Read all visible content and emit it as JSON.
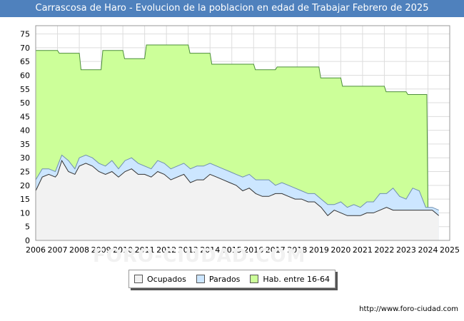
{
  "chart_data": {
    "type": "area",
    "title": "Carrascosa de Haro - Evolucion de la poblacion en edad de Trabajar Febrero de 2025",
    "xlabel": "",
    "ylabel": "",
    "x_ticks": [
      "2006",
      "2007",
      "2008",
      "2009",
      "2010",
      "2011",
      "2012",
      "2013",
      "2014",
      "2015",
      "2016",
      "2017",
      "2018",
      "2019",
      "2020",
      "2021",
      "2022",
      "2023",
      "2024",
      "2025"
    ],
    "y_ticks": [
      0,
      5,
      10,
      15,
      20,
      25,
      30,
      35,
      40,
      45,
      50,
      55,
      60,
      65,
      70,
      75
    ],
    "xlim": [
      2006,
      2025
    ],
    "ylim": [
      0,
      78
    ],
    "grid": true,
    "legend_position": "bottom",
    "series": [
      {
        "name": "Hab. entre 16-64",
        "color": "#ccff99",
        "x": [
          2006.0,
          2006.08,
          2007.0,
          2007.08,
          2008.0,
          2008.08,
          2009.0,
          2009.08,
          2010.0,
          2010.08,
          2011.0,
          2011.08,
          2012.0,
          2012.08,
          2013.0,
          2013.08,
          2014.0,
          2014.08,
          2015.0,
          2015.08,
          2016.0,
          2016.08,
          2017.0,
          2017.08,
          2018.0,
          2018.08,
          2019.0,
          2019.08,
          2020.0,
          2020.08,
          2021.0,
          2021.08,
          2022.0,
          2022.08,
          2023.0,
          2023.08,
          2023.95,
          2024.0
        ],
        "values": [
          69,
          69,
          69,
          68,
          68,
          62,
          62,
          69,
          69,
          66,
          66,
          71,
          71,
          71,
          71,
          68,
          68,
          64,
          64,
          64,
          64,
          62,
          62,
          63,
          63,
          63,
          63,
          59,
          59,
          56,
          56,
          56,
          56,
          54,
          54,
          53,
          53,
          12
        ]
      },
      {
        "name": "Parados",
        "color": "#cce6ff",
        "x": [
          2006.0,
          2006.3,
          2006.6,
          2006.9,
          2007.0,
          2007.2,
          2007.5,
          2007.8,
          2008.0,
          2008.3,
          2008.6,
          2008.9,
          2009.2,
          2009.5,
          2009.8,
          2010.1,
          2010.4,
          2010.7,
          2011.0,
          2011.3,
          2011.6,
          2011.9,
          2012.2,
          2012.5,
          2012.8,
          2013.1,
          2013.4,
          2013.7,
          2014.0,
          2014.3,
          2014.6,
          2014.9,
          2015.2,
          2015.5,
          2015.8,
          2016.1,
          2016.4,
          2016.7,
          2017.0,
          2017.3,
          2017.6,
          2017.9,
          2018.2,
          2018.5,
          2018.8,
          2019.1,
          2019.4,
          2019.7,
          2020.0,
          2020.3,
          2020.6,
          2020.9,
          2021.2,
          2021.5,
          2021.8,
          2022.1,
          2022.4,
          2022.7,
          2023.0,
          2023.3,
          2023.6,
          2023.9,
          2024.2,
          2024.5
        ],
        "values": [
          22,
          26,
          26,
          25,
          27,
          31,
          29,
          26,
          30,
          31,
          30,
          28,
          27,
          29,
          26,
          29,
          30,
          28,
          27,
          26,
          29,
          28,
          26,
          27,
          28,
          26,
          27,
          27,
          28,
          27,
          26,
          25,
          24,
          23,
          24,
          22,
          22,
          22,
          20,
          21,
          20,
          19,
          18,
          17,
          17,
          15,
          13,
          13,
          14,
          12,
          13,
          12,
          14,
          14,
          17,
          17,
          19,
          16,
          15,
          19,
          18,
          12,
          12,
          11
        ]
      },
      {
        "name": "Ocupados",
        "color": "#f2f2f2",
        "x": [
          2006.0,
          2006.3,
          2006.6,
          2006.9,
          2007.0,
          2007.2,
          2007.5,
          2007.8,
          2008.0,
          2008.3,
          2008.6,
          2008.9,
          2009.2,
          2009.5,
          2009.8,
          2010.1,
          2010.4,
          2010.7,
          2011.0,
          2011.3,
          2011.6,
          2011.9,
          2012.2,
          2012.5,
          2012.8,
          2013.1,
          2013.4,
          2013.7,
          2014.0,
          2014.3,
          2014.6,
          2014.9,
          2015.2,
          2015.5,
          2015.8,
          2016.1,
          2016.4,
          2016.7,
          2017.0,
          2017.3,
          2017.6,
          2017.9,
          2018.2,
          2018.5,
          2018.8,
          2019.1,
          2019.4,
          2019.7,
          2020.0,
          2020.3,
          2020.6,
          2020.9,
          2021.2,
          2021.5,
          2021.8,
          2022.1,
          2022.4,
          2022.7,
          2023.0,
          2023.3,
          2023.6,
          2023.9,
          2024.2,
          2024.5
        ],
        "values": [
          18,
          23,
          24,
          23,
          24,
          29,
          25,
          24,
          27,
          28,
          27,
          25,
          24,
          25,
          23,
          25,
          26,
          24,
          24,
          23,
          25,
          24,
          22,
          23,
          24,
          21,
          22,
          22,
          24,
          23,
          22,
          21,
          20,
          18,
          19,
          17,
          16,
          16,
          17,
          17,
          16,
          15,
          15,
          14,
          14,
          12,
          9,
          11,
          10,
          9,
          9,
          9,
          10,
          10,
          11,
          12,
          11,
          11,
          11,
          11,
          11,
          11,
          11,
          9
        ]
      }
    ]
  },
  "legend": {
    "ocupados_label": "Ocupados",
    "parados_label": "Parados",
    "hab_label": "Hab. entre 16-64"
  },
  "footer": {
    "source": "http://www.foro-ciudad.com"
  }
}
